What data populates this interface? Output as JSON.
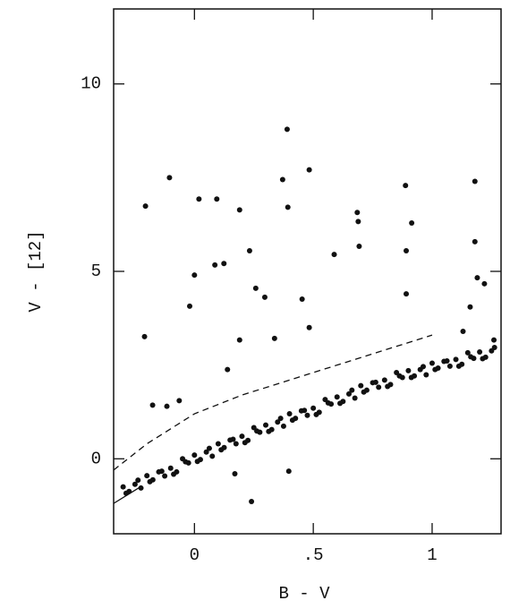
{
  "chart_data": {
    "type": "scatter",
    "xlabel": "B - V",
    "ylabel": "V - [12]",
    "xlim": [
      -0.34,
      1.29
    ],
    "ylim": [
      -2,
      12
    ],
    "xticks": [
      0,
      {
        "value": 0.5,
        "label": ".5"
      },
      1
    ],
    "yticks": [
      0,
      5,
      10
    ],
    "color": "#111111",
    "x": [
      -0.3,
      -0.275,
      -0.25,
      -0.225,
      -0.2,
      -0.175,
      -0.15,
      -0.125,
      -0.1,
      -0.075,
      -0.05,
      -0.025,
      0,
      0.025,
      0.05,
      0.075,
      0.1,
      0.125,
      0.15,
      0.175,
      0.2,
      0.225,
      0.25,
      0.275,
      0.3,
      0.325,
      0.35,
      0.375,
      0.4,
      0.425,
      0.45,
      0.475,
      0.5,
      0.525,
      0.55,
      0.575,
      0.6,
      0.625,
      0.65,
      0.675,
      0.7,
      0.725,
      0.75,
      0.775,
      0.8,
      0.825,
      0.85,
      0.875,
      0.9,
      0.925,
      0.95,
      0.975,
      1.0,
      1.025,
      1.05,
      1.075,
      1.1,
      1.125,
      1.15,
      1.175,
      1.2,
      1.225,
      1.25,
      -0.2875,
      -0.2375,
      -0.1875,
      -0.1375,
      -0.0875,
      -0.0375,
      0.0125,
      0.0625,
      0.1125,
      0.1625,
      0.2125,
      0.2625,
      0.3125,
      0.3625,
      0.4125,
      0.4625,
      0.5125,
      0.5625,
      0.6125,
      0.6625,
      0.7125,
      0.7625,
      0.8125,
      0.8625,
      0.9125,
      0.9625,
      1.0125,
      1.0625,
      1.1125,
      1.1625,
      1.2125,
      1.2625,
      -0.206,
      -0.105,
      0.019,
      0.094,
      0.086,
      0.124,
      0.19,
      0,
      -0.02,
      0.232,
      0.258,
      0.296,
      0.39,
      0.371,
      0.393,
      0.483,
      0.453,
      0.483,
      0.685,
      0.689,
      0.693,
      0.588,
      0.888,
      0.914,
      0.891,
      0.891,
      1.18,
      1.18,
      1.19,
      -0.21,
      0.19,
      0.337,
      0.139,
      -0.064,
      -0.176,
      -0.116,
      0.397,
      0.24,
      0.17,
      1.22,
      1.16,
      1.26,
      1.13
    ],
    "values": [
      -0.75,
      -0.87,
      -0.68,
      -0.78,
      -0.45,
      -0.56,
      -0.35,
      -0.46,
      -0.25,
      -0.35,
      0.0,
      -0.11,
      0.1,
      -0.02,
      0.18,
      0.07,
      0.4,
      0.3,
      0.5,
      0.4,
      0.6,
      0.49,
      0.83,
      0.71,
      0.9,
      0.78,
      0.98,
      0.87,
      1.2,
      1.08,
      1.28,
      1.16,
      1.35,
      1.24,
      1.58,
      1.46,
      1.65,
      1.53,
      1.73,
      1.62,
      1.95,
      1.83,
      2.03,
      1.91,
      2.1,
      1.98,
      2.3,
      2.17,
      2.35,
      2.21,
      2.38,
      2.24,
      2.55,
      2.42,
      2.6,
      2.47,
      2.65,
      2.52,
      2.83,
      2.68,
      2.85,
      2.71,
      2.88,
      -0.92,
      -0.57,
      -0.61,
      -0.33,
      -0.41,
      -0.08,
      -0.07,
      0.28,
      0.24,
      0.52,
      0.43,
      0.74,
      0.73,
      1.08,
      1.03,
      1.29,
      1.18,
      1.49,
      1.48,
      1.83,
      1.78,
      2.04,
      1.93,
      2.21,
      2.17,
      2.46,
      2.38,
      2.61,
      2.47,
      2.72,
      2.67,
      2.97,
      6.74,
      7.5,
      6.93,
      6.93,
      5.17,
      5.21,
      6.64,
      4.9,
      4.07,
      5.55,
      4.55,
      4.31,
      8.79,
      7.45,
      6.71,
      7.71,
      4.26,
      3.5,
      6.57,
      6.33,
      5.67,
      5.45,
      7.29,
      6.29,
      5.55,
      4.4,
      7.4,
      5.79,
      4.83,
      3.26,
      3.17,
      3.21,
      2.38,
      1.55,
      1.43,
      1.4,
      -0.33,
      -1.14,
      -0.4,
      4.67,
      4.05,
      3.17,
      3.4
    ],
    "lines": [
      {
        "style": "dashed",
        "x": [
          -0.34,
          -0.2,
          0,
          0.2,
          0.4,
          0.6,
          0.8,
          1.0
        ],
        "values": [
          -0.3,
          0.4,
          1.2,
          1.7,
          2.1,
          2.5,
          2.9,
          3.3
        ]
      },
      {
        "style": "solid",
        "x": [
          -0.34,
          -0.23
        ],
        "values": [
          -1.19,
          -0.76
        ]
      }
    ]
  }
}
